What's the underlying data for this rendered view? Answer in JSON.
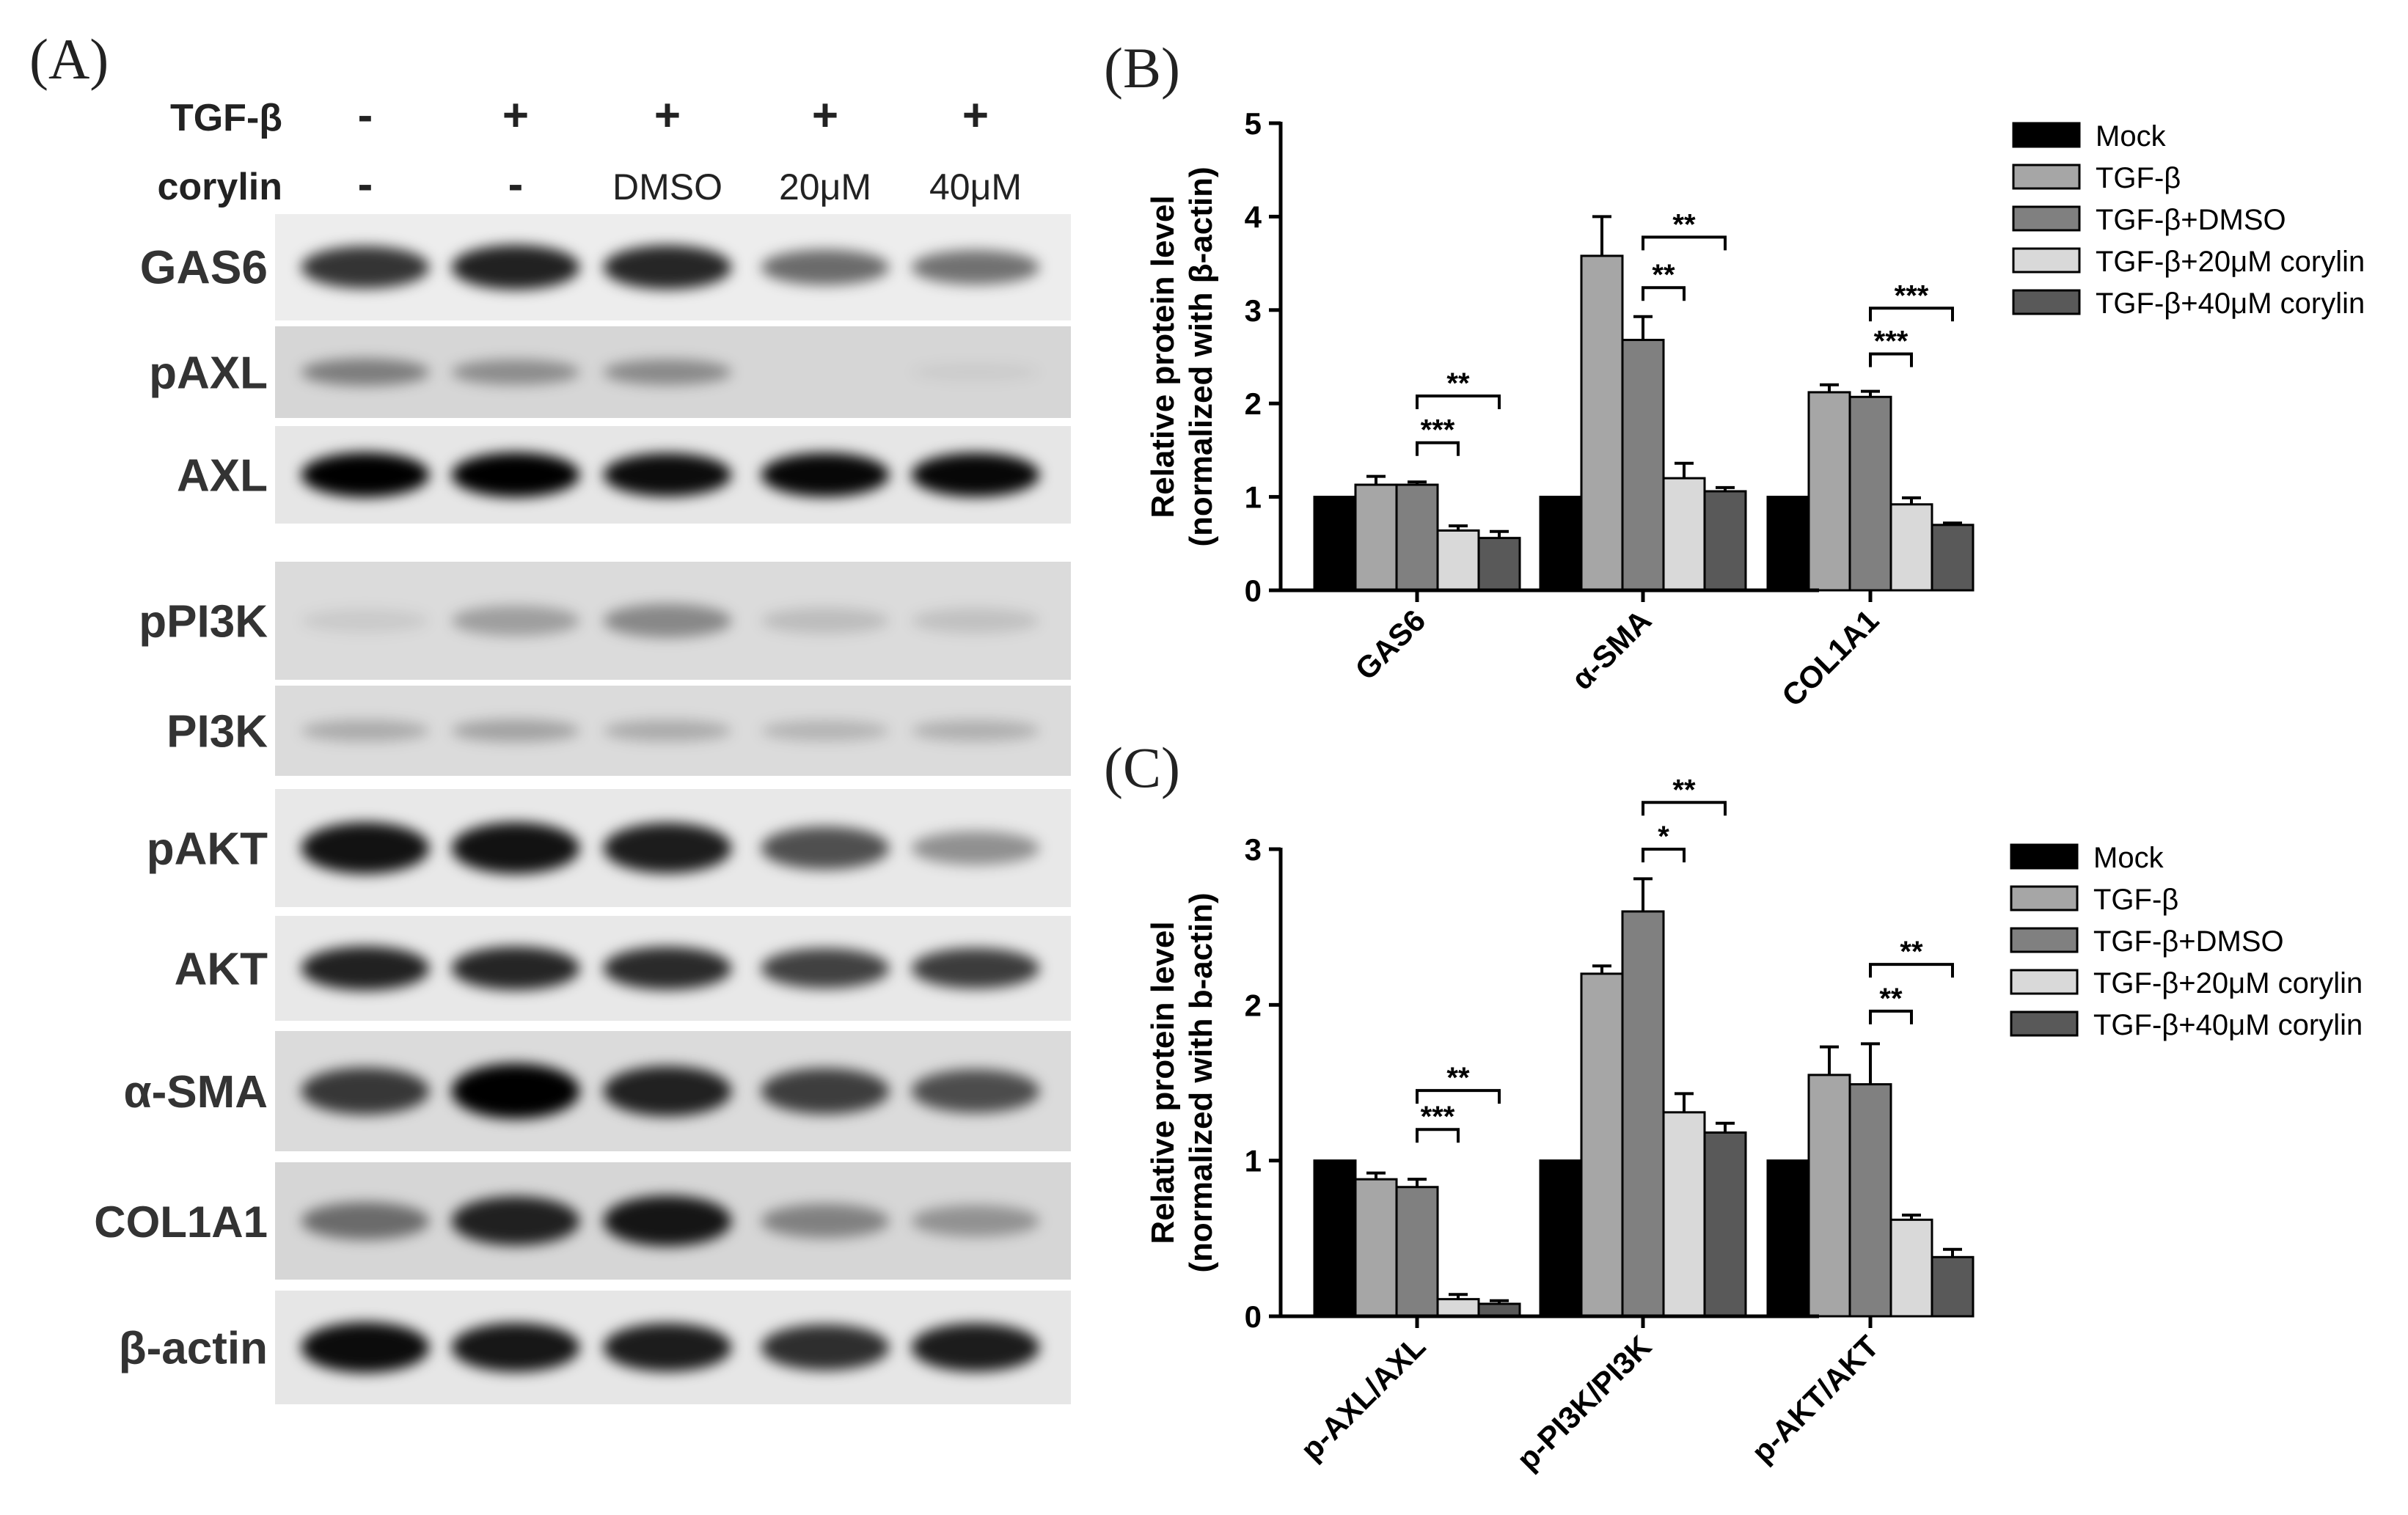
{
  "panels": {
    "a": "(A)",
    "b": "(B)",
    "c": "(C)"
  },
  "blot": {
    "treatment_rows": [
      {
        "label": "TGF-β",
        "values": [
          "-",
          "+",
          "+",
          "+",
          "+"
        ]
      },
      {
        "label": "corylin",
        "values": [
          "-",
          "-",
          "DMSO",
          "20μM",
          "40μM"
        ]
      }
    ],
    "bands": [
      {
        "label": "GAS6",
        "intensity": [
          0.78,
          0.86,
          0.84,
          0.55,
          0.52
        ],
        "tone": 0.93
      },
      {
        "label": "pAXL",
        "intensity": [
          0.42,
          0.35,
          0.36,
          0.03,
          0.05
        ],
        "tone": 0.84
      },
      {
        "label": "AXL",
        "intensity": [
          1.0,
          1.0,
          0.95,
          0.97,
          0.97
        ],
        "tone": 0.9
      },
      {
        "label": "pPI3K",
        "intensity": [
          0.08,
          0.28,
          0.38,
          0.14,
          0.12
        ],
        "tone": 0.86
      },
      {
        "label": "PI3K",
        "intensity": [
          0.22,
          0.26,
          0.22,
          0.18,
          0.2
        ],
        "tone": 0.86
      },
      {
        "label": "pAKT",
        "intensity": [
          0.92,
          0.92,
          0.88,
          0.66,
          0.38
        ],
        "tone": 0.91
      },
      {
        "label": "AKT",
        "intensity": [
          0.86,
          0.84,
          0.82,
          0.72,
          0.74
        ],
        "tone": 0.91
      },
      {
        "label": "α-SMA",
        "intensity": [
          0.75,
          1.0,
          0.85,
          0.72,
          0.65
        ],
        "tone": 0.86
      },
      {
        "label": "COL1A1",
        "intensity": [
          0.5,
          0.85,
          0.9,
          0.4,
          0.32
        ],
        "tone": 0.84
      },
      {
        "label": "β-actin",
        "intensity": [
          0.95,
          0.9,
          0.88,
          0.8,
          0.88
        ],
        "tone": 0.9
      }
    ]
  },
  "chart_data": [
    {
      "type": "bar",
      "panel": "(B)",
      "categories": [
        "GAS6",
        "α-SMA",
        "COL1A1"
      ],
      "ylabel_line1": "Relative protein level",
      "ylabel_line2": "(normalized with β-actin)",
      "ylim": [
        0,
        5
      ],
      "yticks": [
        "0",
        "1",
        "2",
        "3",
        "4",
        "5"
      ],
      "legend_position": "right",
      "series": [
        {
          "name": "Mock",
          "color": "#000000",
          "values": [
            1.0,
            1.0,
            1.0
          ],
          "errors": [
            0,
            0,
            0
          ]
        },
        {
          "name": "TGF-β",
          "color": "#a6a6a6",
          "values": [
            1.13,
            3.58,
            2.12
          ],
          "errors": [
            0.09,
            0.42,
            0.08
          ]
        },
        {
          "name": "TGF-β+DMSO",
          "color": "#808080",
          "values": [
            1.13,
            2.68,
            2.07
          ],
          "errors": [
            0.03,
            0.25,
            0.06
          ]
        },
        {
          "name": "TGF-β+20μM corylin",
          "color": "#d9d9d9",
          "values": [
            0.64,
            1.2,
            0.92
          ],
          "errors": [
            0.05,
            0.16,
            0.07
          ]
        },
        {
          "name": "TGF-β+40μM corylin",
          "color": "#595959",
          "values": [
            0.56,
            1.06,
            0.7
          ],
          "errors": [
            0.07,
            0.04,
            0.02
          ]
        }
      ],
      "significance": [
        {
          "category": 0,
          "from_series": 2,
          "to_series": 3,
          "label": "***",
          "level": 1.58
        },
        {
          "category": 0,
          "from_series": 2,
          "to_series": 4,
          "label": "**",
          "level": 2.08
        },
        {
          "category": 1,
          "from_series": 2,
          "to_series": 3,
          "label": "**",
          "level": 3.24
        },
        {
          "category": 1,
          "from_series": 2,
          "to_series": 4,
          "label": "**",
          "level": 3.78
        },
        {
          "category": 2,
          "from_series": 2,
          "to_series": 3,
          "label": "***",
          "level": 2.53
        },
        {
          "category": 2,
          "from_series": 2,
          "to_series": 4,
          "label": "***",
          "level": 3.02
        }
      ]
    },
    {
      "type": "bar",
      "panel": "(C)",
      "categories": [
        "p-AXL/AXL",
        "p-PI3K/PI3K",
        "p-AKT/AKT"
      ],
      "ylabel_line1": "Relative protein level",
      "ylabel_line2": "(normalized with b-actin)",
      "ylim": [
        0,
        3
      ],
      "yticks": [
        "0",
        "1",
        "2",
        "3"
      ],
      "legend_position": "right",
      "series": [
        {
          "name": "Mock",
          "color": "#000000",
          "values": [
            1.0,
            1.0,
            1.0
          ],
          "errors": [
            0,
            0,
            0
          ]
        },
        {
          "name": "TGF-β",
          "color": "#a6a6a6",
          "values": [
            0.88,
            2.2,
            1.55
          ],
          "errors": [
            0.04,
            0.05,
            0.18
          ]
        },
        {
          "name": "TGF-β+DMSO",
          "color": "#808080",
          "values": [
            0.83,
            2.6,
            1.49
          ],
          "errors": [
            0.05,
            0.21,
            0.26
          ]
        },
        {
          "name": "TGF-β+20μM corylin",
          "color": "#d9d9d9",
          "values": [
            0.11,
            1.31,
            0.62
          ],
          "errors": [
            0.03,
            0.12,
            0.03
          ]
        },
        {
          "name": "TGF-β+40μM corylin",
          "color": "#595959",
          "values": [
            0.08,
            1.18,
            0.38
          ],
          "errors": [
            0.02,
            0.06,
            0.05
          ]
        }
      ],
      "significance": [
        {
          "category": 0,
          "from_series": 2,
          "to_series": 3,
          "label": "***",
          "level": 1.2
        },
        {
          "category": 0,
          "from_series": 2,
          "to_series": 4,
          "label": "**",
          "level": 1.45
        },
        {
          "category": 1,
          "from_series": 2,
          "to_series": 3,
          "label": "*",
          "level": 3.0
        },
        {
          "category": 1,
          "from_series": 2,
          "to_series": 4,
          "label": "**",
          "level": 3.3
        },
        {
          "category": 2,
          "from_series": 2,
          "to_series": 3,
          "label": "**",
          "level": 1.96
        },
        {
          "category": 2,
          "from_series": 2,
          "to_series": 4,
          "label": "**",
          "level": 2.26
        }
      ]
    }
  ]
}
